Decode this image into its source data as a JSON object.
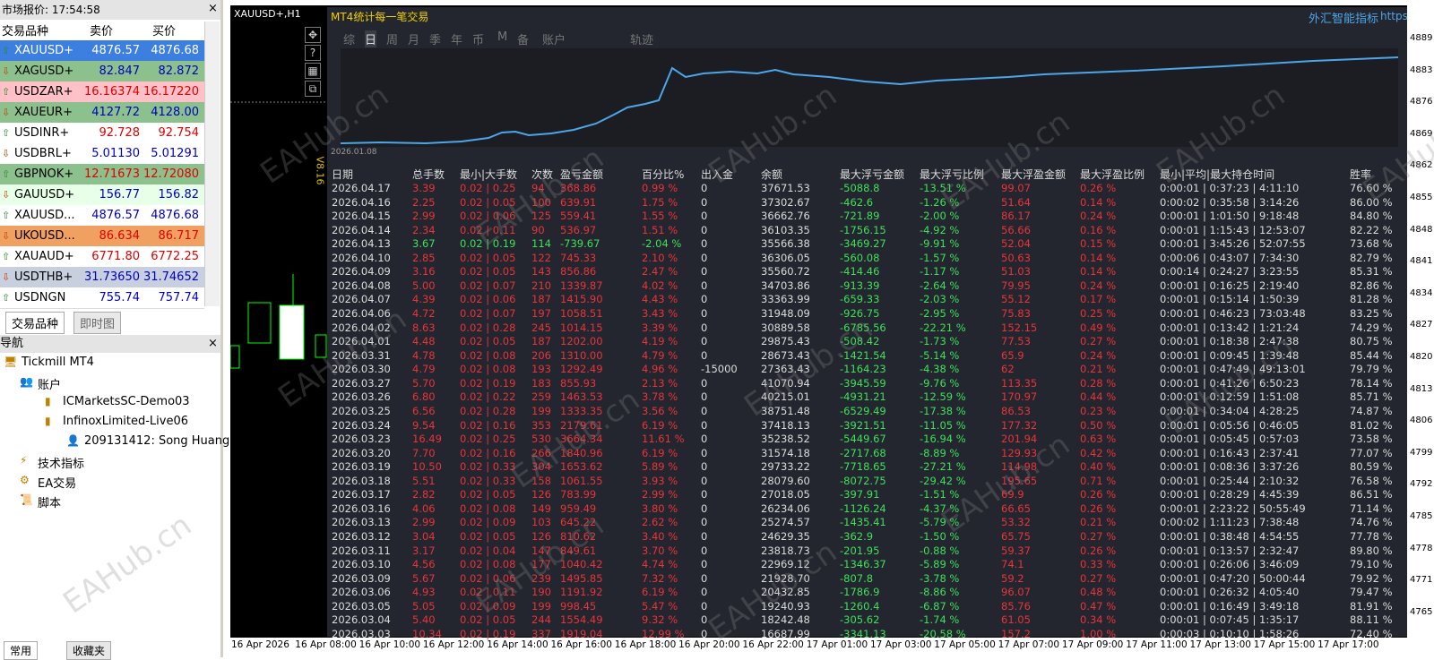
{
  "market_watch": {
    "title": "市场报价: 17:54:58",
    "headers": [
      "交易品种",
      "卖价",
      "买价"
    ],
    "rows": [
      [
        "XAUUSD+",
        "4876.57",
        "4876.68"
      ],
      [
        "XAGUSD+",
        "82.847",
        "82.872"
      ],
      [
        "USDZAR+",
        "16.16374",
        "16.17220"
      ],
      [
        "XAUEUR+",
        "4127.72",
        "4128.00"
      ],
      [
        "USDINR+",
        "92.728",
        "92.754"
      ],
      [
        "USDBRL+",
        "5.01130",
        "5.01291"
      ],
      [
        "GBPNOK+",
        "12.71673",
        "12.72080"
      ],
      [
        "GAUUSD+",
        "156.77",
        "156.82"
      ],
      [
        "XAUUSD...",
        "4876.57",
        "4876.68"
      ],
      [
        "UKOUSD...",
        "86.634",
        "86.717"
      ],
      [
        "XAUAUD+",
        "6771.80",
        "6772.25"
      ],
      [
        "USDTHB+",
        "31.73650",
        "31.74652"
      ],
      [
        "USDNGN",
        "755.74",
        "757.74"
      ]
    ],
    "tabs": [
      "交易品种",
      "即时图"
    ]
  },
  "navigator": {
    "title": "导航",
    "items": [
      "Tickmill MT4",
      "账户",
      "ICMarketsSC-Demo03",
      "InfinoxLimited-Live06",
      "209131412: Song Huang",
      "技术指标",
      "EA交易",
      "脚本"
    ],
    "tabs": [
      "常用",
      "收藏夹"
    ]
  },
  "chart": {
    "symbol": "XAUUSD+,H1",
    "panel_title": "MT4统计每一笔交易",
    "brand": "外汇智能指标",
    "brand_suffix": "https",
    "tabs": [
      "综",
      "日",
      "周",
      "月",
      "季",
      "年",
      "币",
      "M",
      "备",
      "账户",
      "轨迹"
    ],
    "version": "V8.16",
    "equity_start": "2026.01.08",
    "watermark": "EAHub.cn",
    "price_labels": [
      "4889",
      "4883",
      "4876",
      "4869",
      "4862",
      "4855",
      "4848",
      "4841",
      "4834",
      "4827",
      "4820",
      "4813",
      "4806",
      "4799",
      "4792",
      "4785",
      "4778",
      "4771",
      "4765"
    ],
    "time_labels": [
      "16 Apr 2026",
      "16 Apr 08:00",
      "16 Apr 10:00",
      "16 Apr 12:00",
      "16 Apr 14:00",
      "16 Apr 16:00",
      "16 Apr 18:00",
      "16 Apr 20:00",
      "16 Apr 22:00",
      "17 Apr 01:00",
      "17 Apr 03:00",
      "17 Apr 05:00",
      "17 Apr 07:00",
      "17 Apr 09:00",
      "17 Apr 11:00",
      "17 Apr 13:00",
      "17 Apr 15:00",
      "17 Apr 17:00"
    ]
  },
  "table": {
    "headers": [
      "日期",
      "总手数",
      "最小|大手数",
      "次数",
      "盈亏金额",
      "百分比%",
      "出入金",
      "余额",
      "最大浮亏金额",
      "最大浮亏比例",
      "最大浮盈金额",
      "最大浮盈比例",
      "最小|平均|最大持仓时间",
      "胜率"
    ],
    "rows": [
      [
        "2026.04.17",
        "3.39",
        "0.02 | 0.25",
        "94",
        "368.86",
        "0.99 %",
        "0",
        "37671.53",
        "-5088.8",
        "-13.51 %",
        "99.07",
        "0.26 %",
        "0:00:01 | 0:37:23 | 4:11:10",
        "76.60 %"
      ],
      [
        "2026.04.16",
        "2.25",
        "0.02 | 0.05",
        "100",
        "639.91",
        "1.75 %",
        "0",
        "37302.67",
        "-462.6",
        "-1.26 %",
        "51.64",
        "0.14 %",
        "0:00:02 | 0:35:58 | 3:14:26",
        "86.00 %"
      ],
      [
        "2026.04.15",
        "2.99",
        "0.02 | 0.06",
        "125",
        "559.41",
        "1.55 %",
        "0",
        "36662.76",
        "-721.89",
        "-2.00 %",
        "86.17",
        "0.24 %",
        "0:00:01 | 1:01:50 | 9:18:48",
        "84.80 %"
      ],
      [
        "2026.04.14",
        "2.34",
        "0.02 | 0.11",
        "90",
        "536.97",
        "1.51 %",
        "0",
        "36103.35",
        "-1756.15",
        "-4.92 %",
        "56.66",
        "0.16 %",
        "0:00:01 | 1:15:43 | 12:53:07",
        "82.22 %"
      ],
      [
        "2026.04.13",
        "3.67",
        "0.02 | 0.19",
        "114",
        "-739.67",
        "-2.04 %",
        "0",
        "35566.38",
        "-3469.27",
        "-9.91 %",
        "52.04",
        "0.15 %",
        "0:00:01 | 3:45:26 | 52:07:55",
        "73.68 %"
      ],
      [
        "2026.04.10",
        "2.85",
        "0.02 | 0.05",
        "122",
        "745.33",
        "2.10 %",
        "0",
        "36306.05",
        "-560.08",
        "-1.57 %",
        "50.63",
        "0.14 %",
        "0:00:06 | 0:43:07 | 7:34:30",
        "82.79 %"
      ],
      [
        "2026.04.09",
        "3.16",
        "0.02 | 0.05",
        "143",
        "856.86",
        "2.47 %",
        "0",
        "35560.72",
        "-414.46",
        "-1.17 %",
        "51.03",
        "0.14 %",
        "0:00:14 | 0:24:27 | 3:23:55",
        "85.31 %"
      ],
      [
        "2026.04.08",
        "5.00",
        "0.02 | 0.07",
        "210",
        "1339.87",
        "4.02 %",
        "0",
        "34703.86",
        "-913.39",
        "-2.64 %",
        "79.95",
        "0.24 %",
        "0:00:01 | 0:16:25 | 2:19:40",
        "82.86 %"
      ],
      [
        "2026.04.07",
        "4.39",
        "0.02 | 0.06",
        "187",
        "1415.90",
        "4.43 %",
        "0",
        "33363.99",
        "-659.33",
        "-2.03 %",
        "55.12",
        "0.17 %",
        "0:00:01 | 0:15:14 | 1:50:39",
        "81.28 %"
      ],
      [
        "2026.04.06",
        "4.72",
        "0.02 | 0.07",
        "197",
        "1058.51",
        "3.43 %",
        "0",
        "31948.09",
        "-926.75",
        "-2.95 %",
        "75.83",
        "0.25 %",
        "0:00:01 | 0:46:23 | 73:03:48",
        "83.25 %"
      ],
      [
        "2026.04.02",
        "8.63",
        "0.02 | 0.28",
        "245",
        "1014.15",
        "3.39 %",
        "0",
        "30889.58",
        "-6785.56",
        "-22.21 %",
        "152.15",
        "0.49 %",
        "0:00:01 | 0:13:42 | 1:21:24",
        "74.29 %"
      ],
      [
        "2026.04.01",
        "4.48",
        "0.02 | 0.05",
        "187",
        "1202.00",
        "4.19 %",
        "0",
        "29875.43",
        "-508.42",
        "-1.73 %",
        "77.53",
        "0.27 %",
        "0:00:01 | 0:18:38 | 2:47:38",
        "80.75 %"
      ],
      [
        "2026.03.31",
        "4.78",
        "0.02 | 0.08",
        "206",
        "1310.00",
        "4.79 %",
        "0",
        "28673.43",
        "-1421.54",
        "-5.14 %",
        "65.9",
        "0.24 %",
        "0:00:01 | 0:09:45 | 1:39:48",
        "85.44 %"
      ],
      [
        "2026.03.30",
        "4.79",
        "0.02 | 0.08",
        "193",
        "1292.49",
        "4.96 %",
        "-15000",
        "27363.43",
        "-1164.23",
        "-4.38 %",
        "62",
        "0.21 %",
        "0:00:01 | 0:47:49 | 49:13:01",
        "79.79 %"
      ],
      [
        "2026.03.27",
        "5.70",
        "0.02 | 0.19",
        "183",
        "855.93",
        "2.13 %",
        "0",
        "41070.94",
        "-3945.59",
        "-9.76 %",
        "113.35",
        "0.28 %",
        "0:00:01 | 0:41:26 | 6:50:23",
        "78.14 %"
      ],
      [
        "2026.03.26",
        "6.80",
        "0.02 | 0.22",
        "259",
        "1463.53",
        "3.78 %",
        "0",
        "40215.01",
        "-4931.21",
        "-12.59 %",
        "170.97",
        "0.44 %",
        "0:00:01 | 0:12:59 | 1:51:08",
        "85.71 %"
      ],
      [
        "2026.03.25",
        "6.56",
        "0.02 | 0.28",
        "199",
        "1333.35",
        "3.56 %",
        "0",
        "38751.48",
        "-6529.49",
        "-17.38 %",
        "86.53",
        "0.23 %",
        "0:00:01 | 0:34:04 | 4:28:25",
        "74.87 %"
      ],
      [
        "2026.03.24",
        "9.54",
        "0.02 | 0.16",
        "353",
        "2179.61",
        "6.19 %",
        "0",
        "37418.13",
        "-3921.51",
        "-11.05 %",
        "177.32",
        "0.50 %",
        "0:00:01 | 0:05:56 | 0:46:05",
        "81.02 %"
      ],
      [
        "2026.03.23",
        "16.49",
        "0.02 | 0.25",
        "530",
        "3664.34",
        "11.61 %",
        "0",
        "35238.52",
        "-5449.67",
        "-16.94 %",
        "201.94",
        "0.63 %",
        "0:00:01 | 0:05:45 | 0:57:03",
        "73.58 %"
      ],
      [
        "2026.03.20",
        "7.70",
        "0.02 | 0.16",
        "266",
        "1840.96",
        "6.19 %",
        "0",
        "31574.18",
        "-2717.68",
        "-8.89 %",
        "129.93",
        "0.42 %",
        "0:00:01 | 0:16:43 | 2:37:41",
        "77.07 %"
      ],
      [
        "2026.03.19",
        "10.50",
        "0.02 | 0.33",
        "304",
        "1653.62",
        "5.89 %",
        "0",
        "29733.22",
        "-7718.65",
        "-27.21 %",
        "114.98",
        "0.40 %",
        "0:00:01 | 0:08:36 | 3:37:26",
        "80.59 %"
      ],
      [
        "2026.03.18",
        "5.51",
        "0.02 | 0.33",
        "158",
        "1061.55",
        "3.93 %",
        "0",
        "28079.60",
        "-8072.75",
        "-29.42 %",
        "195.65",
        "0.71 %",
        "0:00:01 | 0:25:44 | 2:10:32",
        "76.58 %"
      ],
      [
        "2026.03.17",
        "2.82",
        "0.02 | 0.05",
        "126",
        "783.99",
        "2.99 %",
        "0",
        "27018.05",
        "-397.91",
        "-1.51 %",
        "69.9",
        "0.26 %",
        "0:00:01 | 0:28:29 | 4:45:39",
        "86.51 %"
      ],
      [
        "2026.03.16",
        "4.06",
        "0.02 | 0.08",
        "149",
        "959.49",
        "3.80 %",
        "0",
        "26234.06",
        "-1126.24",
        "-4.37 %",
        "66.65",
        "0.26 %",
        "0:00:01 | 2:23:22 | 50:55:49",
        "71.14 %"
      ],
      [
        "2026.03.13",
        "2.99",
        "0.02 | 0.09",
        "103",
        "645.22",
        "2.62 %",
        "0",
        "25274.57",
        "-1435.41",
        "-5.79 %",
        "53.32",
        "0.21 %",
        "0:00:02 | 1:11:23 | 7:38:48",
        "74.76 %"
      ],
      [
        "2026.03.12",
        "3.04",
        "0.02 | 0.05",
        "126",
        "810.62",
        "3.40 %",
        "0",
        "24629.35",
        "-362.9",
        "-1.50 %",
        "65.75",
        "0.27 %",
        "0:00:01 | 0:38:48 | 4:54:55",
        "77.78 %"
      ],
      [
        "2026.03.11",
        "3.17",
        "0.02 | 0.04",
        "147",
        "849.61",
        "3.70 %",
        "0",
        "23818.73",
        "-201.95",
        "-0.88 %",
        "59.37",
        "0.26 %",
        "0:00:01 | 0:13:57 | 2:32:47",
        "89.80 %"
      ],
      [
        "2026.03.10",
        "4.56",
        "0.02 | 0.08",
        "177",
        "1040.42",
        "4.74 %",
        "0",
        "22969.12",
        "-1346.37",
        "-5.89 %",
        "74.1",
        "0.33 %",
        "0:00:01 | 0:26:06 | 3:46:09",
        "79.10 %"
      ],
      [
        "2026.03.09",
        "5.67",
        "0.02 | 0.06",
        "239",
        "1495.85",
        "7.32 %",
        "0",
        "21928.70",
        "-807.8",
        "-3.78 %",
        "59.2",
        "0.27 %",
        "0:00:01 | 0:47:20 | 50:00:44",
        "79.92 %"
      ],
      [
        "2026.03.06",
        "4.93",
        "0.02 | 0.11",
        "190",
        "1191.92",
        "6.19 %",
        "0",
        "20432.85",
        "-1786.9",
        "-8.86 %",
        "96.07",
        "0.48 %",
        "0:00:01 | 0:26:32 | 4:05:40",
        "79.47 %"
      ],
      [
        "2026.03.05",
        "5.05",
        "0.02 | 0.09",
        "199",
        "998.45",
        "5.47 %",
        "0",
        "19240.93",
        "-1260.4",
        "-6.87 %",
        "85.76",
        "0.47 %",
        "0:00:01 | 0:16:49 | 3:49:18",
        "81.91 %"
      ],
      [
        "2026.03.04",
        "5.40",
        "0.02 | 0.05",
        "244",
        "1554.49",
        "9.32 %",
        "0",
        "18242.48",
        "-305.62",
        "-1.74 %",
        "61.05",
        "0.34 %",
        "0:00:01 | 0:07:45 | 1:35:17",
        "88.11 %"
      ],
      [
        "2026.03.03",
        "10.34",
        "0.02 | 0.19",
        "337",
        "1919.04",
        "12.99 %",
        "0",
        "16687.99",
        "-3341.13",
        "-20.58 %",
        "157.2",
        "1.00 %",
        "0:00:03 | 0:10:10 | 1:58:26",
        "72.40 %"
      ]
    ]
  }
}
